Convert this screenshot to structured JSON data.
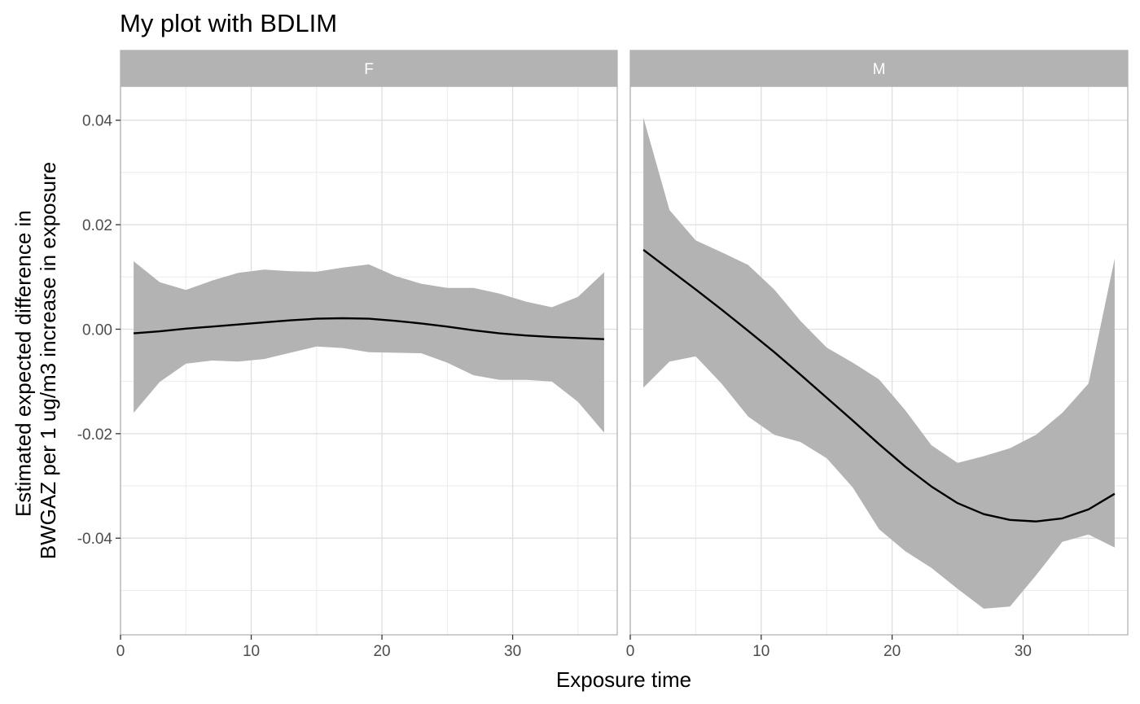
{
  "chart_data": {
    "type": "line",
    "title": "My plot with BDLIM",
    "xlabel": "Exposure time",
    "ylabel_lines": [
      "Estimated expected difference in",
      "BWGAZ per 1 ug/m3 increase in exposure"
    ],
    "xlim": [
      0,
      38
    ],
    "ylim": [
      -0.0585,
      0.0465
    ],
    "x_ticks": [
      0,
      10,
      20,
      30
    ],
    "x_tick_labels": [
      "0",
      "10",
      "20",
      "30"
    ],
    "y_ticks": [
      0.04,
      0.02,
      0.0,
      -0.02,
      -0.04
    ],
    "y_tick_labels": [
      "0.04",
      "0.02",
      "0.00",
      "-0.02",
      "-0.04"
    ],
    "grid": true,
    "ribbon_color": "#b3b3b3",
    "line_color": "#000000",
    "strip_color": "#b3b3b3",
    "panels": [
      {
        "facet": "F",
        "x": [
          1,
          3,
          5,
          7,
          9,
          11,
          13,
          15,
          17,
          19,
          21,
          23,
          25,
          27,
          29,
          31,
          33,
          35,
          37
        ],
        "estimate": [
          -0.0008,
          -0.0004,
          0.0001,
          0.0005,
          0.0009,
          0.0013,
          0.0017,
          0.002,
          0.0021,
          0.002,
          0.0016,
          0.0011,
          0.0005,
          -0.0002,
          -0.0008,
          -0.0012,
          -0.0015,
          -0.0017,
          -0.0019
        ],
        "upper": [
          0.013,
          0.009,
          0.0075,
          0.0093,
          0.0108,
          0.0114,
          0.0111,
          0.011,
          0.0118,
          0.0124,
          0.0102,
          0.0087,
          0.0079,
          0.0079,
          0.0068,
          0.0053,
          0.0042,
          0.0062,
          0.0109
        ],
        "lower": [
          -0.016,
          -0.0101,
          -0.0066,
          -0.006,
          -0.0062,
          -0.0057,
          -0.0045,
          -0.0033,
          -0.0036,
          -0.0044,
          -0.0045,
          -0.0046,
          -0.0064,
          -0.0088,
          -0.0097,
          -0.0097,
          -0.01,
          -0.0139,
          -0.0198
        ]
      },
      {
        "facet": "M",
        "x": [
          1,
          3,
          5,
          7,
          9,
          11,
          13,
          15,
          17,
          19,
          21,
          23,
          25,
          27,
          29,
          31,
          33,
          35,
          37
        ],
        "estimate": [
          0.0152,
          0.0114,
          0.0076,
          0.0037,
          -0.0003,
          -0.0044,
          -0.0087,
          -0.0131,
          -0.0175,
          -0.022,
          -0.0263,
          -0.0301,
          -0.0333,
          -0.0354,
          -0.0365,
          -0.0368,
          -0.0362,
          -0.0345,
          -0.0315
        ],
        "upper": [
          0.0405,
          0.0228,
          0.017,
          0.0147,
          0.0123,
          0.0076,
          0.0016,
          -0.0035,
          -0.0064,
          -0.0096,
          -0.0155,
          -0.0222,
          -0.0256,
          -0.0243,
          -0.0228,
          -0.0202,
          -0.016,
          -0.0104,
          0.0135
        ],
        "lower": [
          -0.0112,
          -0.0062,
          -0.0052,
          -0.0105,
          -0.0167,
          -0.0202,
          -0.0216,
          -0.0247,
          -0.0303,
          -0.0383,
          -0.0425,
          -0.0457,
          -0.0497,
          -0.0535,
          -0.0531,
          -0.0471,
          -0.0407,
          -0.0393,
          -0.0418
        ]
      }
    ]
  }
}
